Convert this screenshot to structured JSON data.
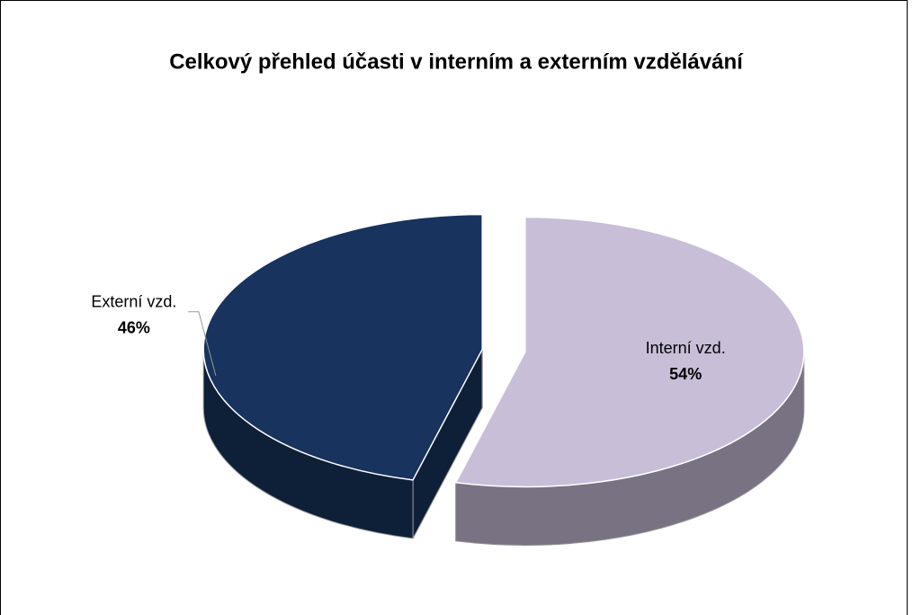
{
  "chart_data": {
    "type": "pie",
    "title": "Celkový přehled účasti v interním a externím vzdělávání",
    "categories": [
      "Interní vzd.",
      "Externí vzd."
    ],
    "values": [
      54,
      46
    ],
    "value_labels": [
      "54%",
      "46%"
    ],
    "colors": [
      "#c8bed8",
      "#17335e"
    ]
  }
}
